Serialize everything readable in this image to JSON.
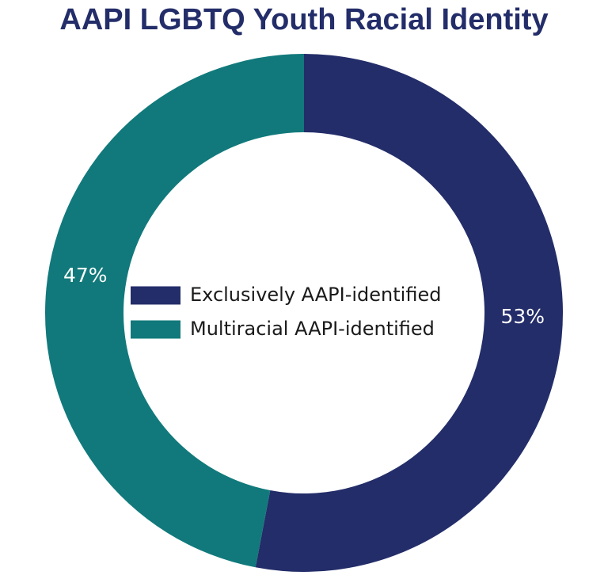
{
  "chart_data": {
    "type": "donut",
    "title": "AAPI LGBTQ Youth Racial Identity",
    "categories": [
      "Exclusively AAPI-identified",
      "Multiracial AAPI-identified"
    ],
    "values": [
      53,
      47
    ],
    "value_labels": [
      "53%",
      "47%"
    ],
    "colors": [
      "#232d69",
      "#11797b"
    ],
    "legend": "center"
  }
}
